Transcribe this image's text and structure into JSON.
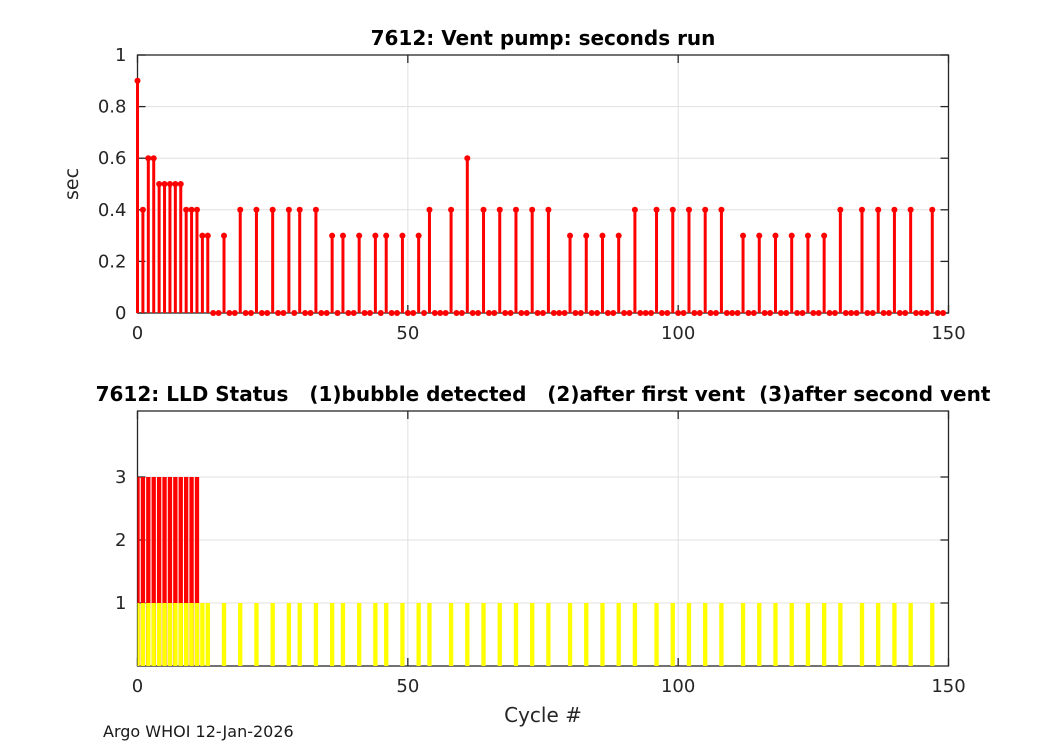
{
  "figure": {
    "footer": "Argo WHOI 12-Jan-2026",
    "background": "#ffffff",
    "colors": {
      "stem": "#ff0000",
      "status3_bar": "#ff0000",
      "status1_bar": "#ffff00",
      "grid": "#e0e0e0",
      "axis": "#262626"
    }
  },
  "chart_data": [
    {
      "type": "stem",
      "title": "7612: Vent pump: seconds run",
      "ylabel": "sec",
      "xlabel": "",
      "xlim": [
        0,
        150
      ],
      "ylim": [
        0,
        1
      ],
      "grid": true,
      "marker": "filled-circle",
      "color": "#ff0000",
      "xticks": [
        0,
        50,
        100,
        150
      ],
      "xtick_labels": [
        "0",
        "50",
        "100",
        "150"
      ],
      "yticks": [
        0,
        0.2,
        0.4,
        0.6,
        0.8,
        1
      ],
      "ytick_labels": [
        "0",
        "0.2",
        "0.4",
        "0.6",
        "0.8",
        "1"
      ],
      "x_is_cycle_index": "values[i] is seconds run at cycle i (0-149)",
      "values": [
        0.9,
        0.4,
        0.6,
        0.6,
        0.5,
        0.5,
        0.5,
        0.5,
        0.5,
        0.4,
        0.4,
        0.4,
        0.3,
        0.3,
        0,
        0,
        0.3,
        0,
        0,
        0.4,
        0,
        0,
        0.4,
        0,
        0,
        0.4,
        0,
        0,
        0.4,
        0,
        0.4,
        0,
        0,
        0.4,
        0,
        0,
        0.3,
        0,
        0.3,
        0,
        0,
        0.3,
        0,
        0,
        0.3,
        0,
        0.3,
        0,
        0,
        0.3,
        0,
        0,
        0.3,
        0,
        0.4,
        0,
        0,
        0,
        0.4,
        0,
        0,
        0.6,
        0,
        0,
        0.4,
        0,
        0,
        0.4,
        0,
        0,
        0.4,
        0,
        0,
        0.4,
        0,
        0,
        0.4,
        0,
        0,
        0,
        0.3,
        0,
        0,
        0.3,
        0,
        0,
        0.3,
        0,
        0,
        0.3,
        0,
        0,
        0.4,
        0,
        0,
        0,
        0.4,
        0,
        0,
        0.4,
        0,
        0,
        0.4,
        0,
        0,
        0.4,
        0,
        0,
        0.4,
        0,
        0,
        0,
        0.3,
        0,
        0,
        0.3,
        0,
        0,
        0.3,
        0,
        0,
        0.3,
        0,
        0,
        0.3,
        0,
        0,
        0.3,
        0,
        0,
        0.4,
        0,
        0,
        0,
        0.4,
        0,
        0,
        0.4,
        0,
        0,
        0.4,
        0,
        0,
        0.4,
        0,
        0,
        0,
        0.4,
        0,
        0
      ]
    },
    {
      "type": "bar",
      "title": "7612: LLD Status   (1)bubble detected   (2)after first vent  (3)after second vent",
      "xlabel": "Cycle #",
      "ylabel": "",
      "xlim": [
        0,
        150
      ],
      "ylim": [
        0,
        4
      ],
      "grid": true,
      "xticks": [
        0,
        50,
        100,
        150
      ],
      "xtick_labels": [
        "0",
        "50",
        "100",
        "150"
      ],
      "yticks": [
        1,
        2,
        3
      ],
      "ytick_labels": [
        "1",
        "2",
        "3"
      ],
      "series": [
        {
          "name": "status-3-after-second-vent",
          "color": "#ff0000",
          "value": 3,
          "cycles": [
            0,
            1,
            2,
            3,
            4,
            5,
            6,
            7,
            8,
            9,
            10,
            11
          ]
        },
        {
          "name": "status-1-bubble-detected",
          "color": "#ffff00",
          "value": 1,
          "cycles": [
            0,
            1,
            2,
            3,
            4,
            5,
            6,
            7,
            8,
            9,
            10,
            11,
            12,
            13,
            16,
            19,
            22,
            25,
            28,
            30,
            33,
            36,
            38,
            41,
            44,
            46,
            49,
            52,
            54,
            58,
            61,
            64,
            67,
            70,
            73,
            76,
            80,
            83,
            86,
            89,
            92,
            96,
            99,
            102,
            105,
            108,
            112,
            115,
            118,
            121,
            124,
            127,
            130,
            134,
            137,
            140,
            143,
            147
          ]
        }
      ]
    }
  ]
}
